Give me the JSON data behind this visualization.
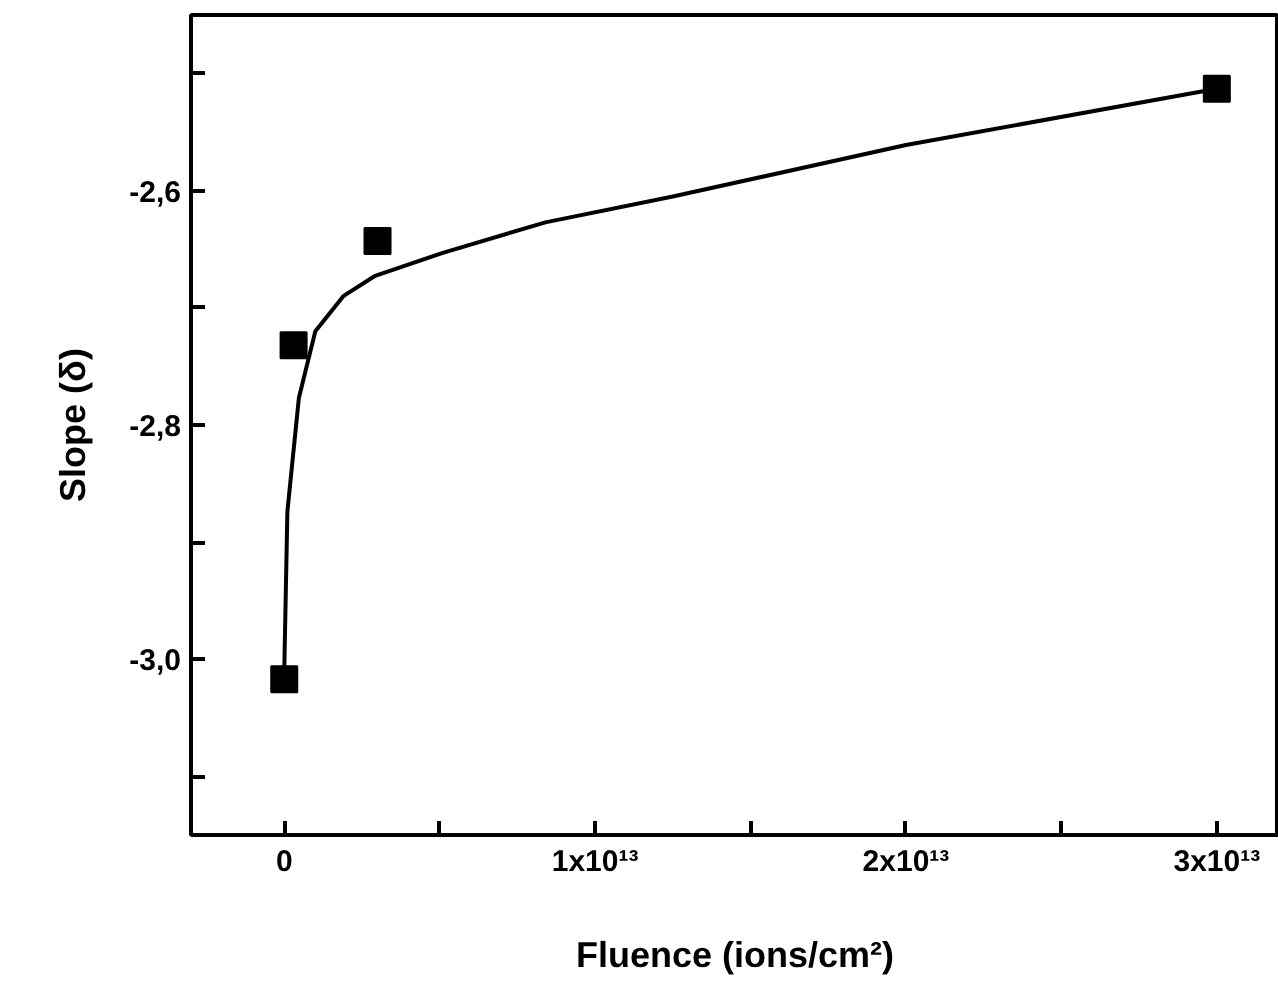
{
  "chart_data": {
    "type": "scatter",
    "xlabel": "Fluence (ions/cm²)",
    "ylabel": "Slope (δ)",
    "xlim": [
      -3000000000000.0,
      32000000000000.0
    ],
    "ylim": [
      -3.15,
      -2.45
    ],
    "xticks": [
      0,
      {
        "value": 5000000000000.0,
        "label": null
      },
      {
        "value": 10000000000000.0,
        "label": "1x10¹³"
      },
      {
        "value": 15000000000000.0,
        "label": null
      },
      {
        "value": 20000000000000.0,
        "label": "2x10¹³"
      },
      {
        "value": 25000000000000.0,
        "label": null
      },
      {
        "value": 30000000000000.0,
        "label": "3x10¹³"
      }
    ],
    "yticks": [
      {
        "value": -3.1,
        "label": null
      },
      {
        "value": -3.0,
        "label": "-3,0"
      },
      {
        "value": -2.9,
        "label": null
      },
      {
        "value": -2.8,
        "label": "-2,8"
      },
      {
        "value": -2.7,
        "label": null
      },
      {
        "value": -2.6,
        "label": "-2,6"
      },
      {
        "value": -2.5,
        "label": null
      }
    ],
    "grid": false,
    "series": [
      {
        "marker": "square",
        "color": "#000000",
        "x": [
          0,
          300000000000.0,
          3000000000000.0,
          30000000000000.0
        ],
        "values": [
          -3.017,
          -2.732,
          -2.643,
          -2.513
        ]
      },
      {
        "type": "line",
        "line_style": "solid",
        "color": "#000000",
        "x": [
          0,
          100000000000.0,
          470000000000.0,
          1000000000000.0,
          1900000000000.0,
          2900000000000.0,
          5100000000000.0,
          8400000000000.0,
          12500000000000.0,
          20000000000000.0,
          30000000000000.0
        ],
        "values": [
          -3.01,
          -2.874,
          -2.777,
          -2.72,
          -2.69,
          -2.673,
          -2.653,
          -2.627,
          -2.605,
          -2.561,
          -2.513
        ]
      }
    ]
  }
}
